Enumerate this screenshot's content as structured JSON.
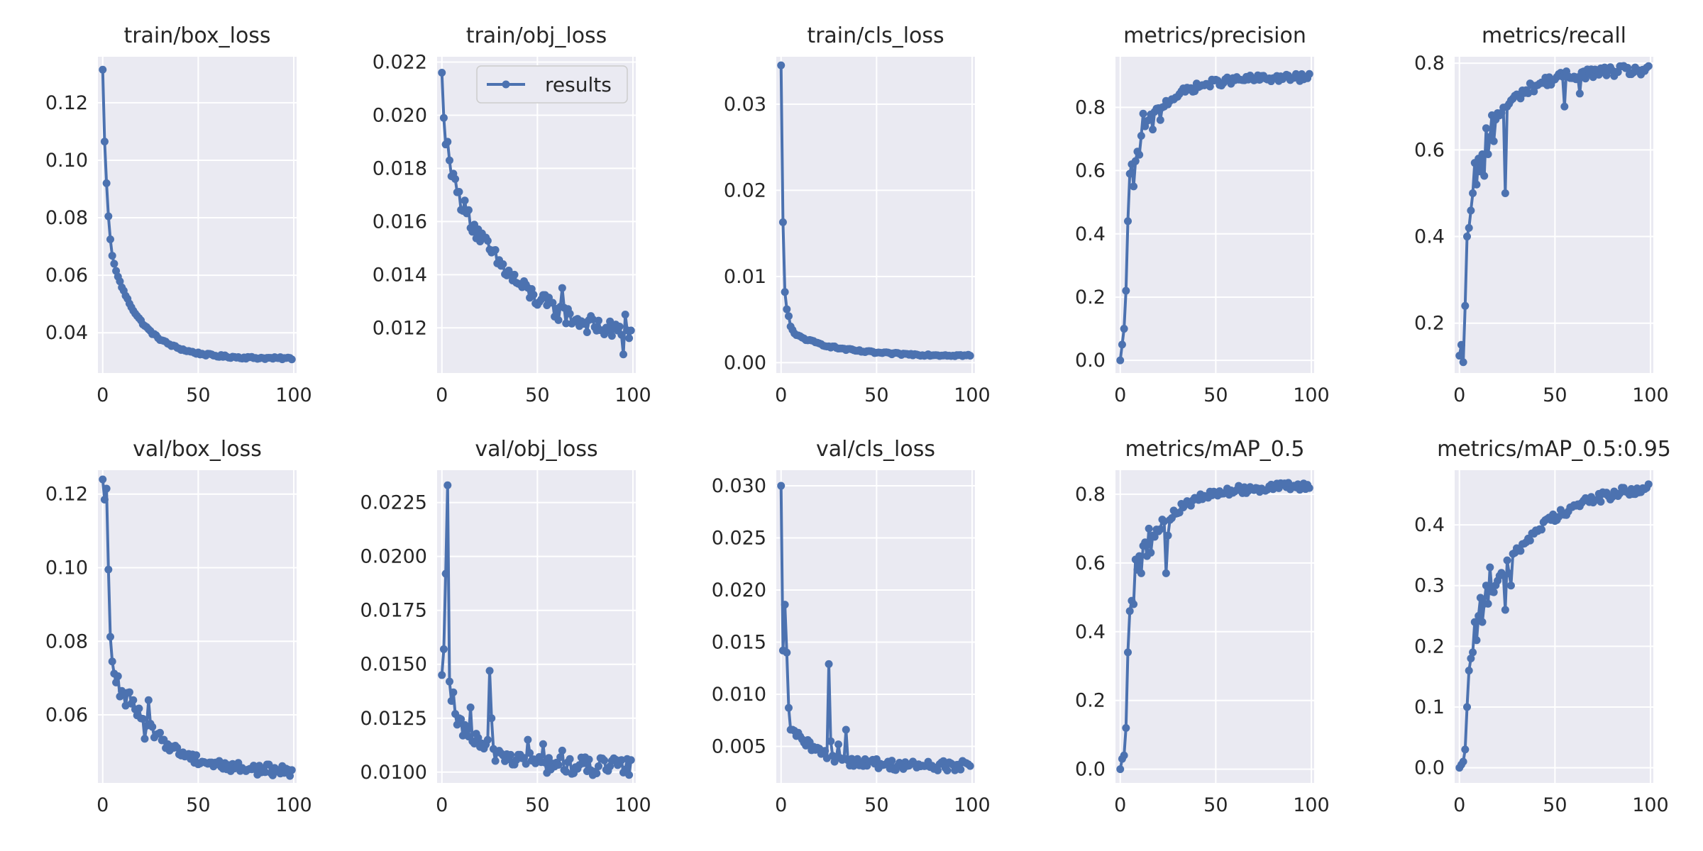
{
  "figure": {
    "colors": {
      "line": "#4c72b0",
      "plot_bg": "#eaeaf2",
      "grid": "#ffffff",
      "text": "#262626",
      "legend_border": "#cccccc"
    },
    "legend": {
      "label": "results",
      "placement": "top-right"
    }
  },
  "chart_data": [
    {
      "type": "line",
      "title": "train/box_loss",
      "xlabel": "",
      "ylabel": "",
      "xlim": [
        -2.5,
        101.5
      ],
      "ylim": [
        0.026,
        0.136
      ],
      "xticks": [
        0,
        50,
        100
      ],
      "yticks": [
        0.04,
        0.06,
        0.08,
        0.1,
        0.12
      ],
      "ytick_labels": [
        "0.04",
        "0.06",
        "0.08",
        "0.10",
        "0.12"
      ],
      "grid": true,
      "legend": false,
      "series": [
        {
          "shape": "decay",
          "start": 0.1315,
          "floor": 0.031,
          "params": [
            0.1315,
            0.1065,
            0.092,
            0.0805,
            0.0725,
            0.0668,
            0.064,
            0.0615,
            0.0595
          ],
          "rate": 0.065,
          "noise": 0.0004
        }
      ]
    },
    {
      "type": "line",
      "title": "train/obj_loss",
      "xlabel": "",
      "ylabel": "",
      "xlim": [
        -2.5,
        101.5
      ],
      "ylim": [
        0.0103,
        0.0222
      ],
      "xticks": [
        0,
        50,
        100
      ],
      "yticks": [
        0.012,
        0.014,
        0.016,
        0.018,
        0.02,
        0.022
      ],
      "ytick_labels": [
        "0.012",
        "0.014",
        "0.016",
        "0.018",
        "0.020",
        "0.022"
      ],
      "grid": true,
      "legend": true,
      "series": [
        {
          "name": "results",
          "shape": "decay",
          "start": 0.0216,
          "floor": 0.0113,
          "params": [
            0.0216,
            0.0199,
            0.0189,
            0.019,
            0.0183,
            0.0177,
            0.0178,
            0.0176,
            0.0171
          ],
          "rate": 0.028,
          "noise": 0.00035,
          "spikes": [
            [
              63,
              0.0135
            ],
            [
              96,
              0.0125
            ],
            [
              95,
              0.011
            ]
          ]
        }
      ]
    },
    {
      "type": "line",
      "title": "train/cls_loss",
      "xlabel": "",
      "ylabel": "",
      "xlim": [
        -2.5,
        101.5
      ],
      "ylim": [
        -0.0012,
        0.0355
      ],
      "xticks": [
        0,
        50,
        100
      ],
      "yticks": [
        0,
        0.01,
        0.02,
        0.03
      ],
      "ytick_labels": [
        "0.00",
        "0.01",
        "0.02",
        "0.03"
      ],
      "grid": true,
      "legend": false,
      "series": [
        {
          "shape": "decay",
          "start": 0.0345,
          "floor": 0.0008,
          "params": [
            0.0345,
            0.0163,
            0.0082,
            0.0062,
            0.0054,
            0.0042,
            0.0038,
            0.0034,
            0.0032
          ],
          "rate": 0.045,
          "noise": 0.00012
        }
      ]
    },
    {
      "type": "line",
      "title": "metrics/precision",
      "xlabel": "",
      "ylabel": "",
      "xlim": [
        -2.5,
        101.5
      ],
      "ylim": [
        -0.04,
        0.96
      ],
      "xticks": [
        0,
        50,
        100
      ],
      "yticks": [
        0,
        0.2,
        0.4,
        0.6,
        0.8
      ],
      "ytick_labels": [
        "0.0",
        "0.2",
        "0.4",
        "0.6",
        "0.8"
      ],
      "grid": true,
      "legend": false,
      "series": [
        {
          "shape": "rise",
          "start": 0.0,
          "ceiling": 0.895,
          "params": [
            0.0,
            0.05,
            0.1,
            0.22,
            0.44,
            0.59,
            0.62,
            0.55,
            0.63,
            0.66,
            0.65,
            0.71,
            0.78,
            0.74
          ],
          "rate": 0.06,
          "noise": 0.012,
          "spikes": [
            [
              17,
              0.73
            ],
            [
              21,
              0.76
            ]
          ]
        }
      ]
    },
    {
      "type": "line",
      "title": "metrics/recall",
      "xlabel": "",
      "ylabel": "",
      "xlim": [
        -2.5,
        101.5
      ],
      "ylim": [
        0.085,
        0.815
      ],
      "xticks": [
        0,
        50,
        100
      ],
      "yticks": [
        0.2,
        0.4,
        0.6,
        0.8
      ],
      "ytick_labels": [
        "0.2",
        "0.4",
        "0.6",
        "0.8"
      ],
      "grid": true,
      "legend": false,
      "series": [
        {
          "shape": "rise",
          "start": 0.125,
          "ceiling": 0.785,
          "params": [
            0.125,
            0.15,
            0.11,
            0.24,
            0.4,
            0.42,
            0.46,
            0.5,
            0.57,
            0.52,
            0.58,
            0.55,
            0.59,
            0.54,
            0.65,
            0.59,
            0.63,
            0.68,
            0.62,
            0.67
          ],
          "rate": 0.055,
          "noise": 0.012,
          "spikes": [
            [
              24,
              0.5
            ],
            [
              55,
              0.7
            ],
            [
              63,
              0.73
            ]
          ]
        }
      ]
    },
    {
      "type": "line",
      "title": "val/box_loss",
      "xlabel": "",
      "ylabel": "",
      "xlim": [
        -2.5,
        101.5
      ],
      "ylim": [
        0.0415,
        0.1265
      ],
      "xticks": [
        0,
        50,
        100
      ],
      "yticks": [
        0.06,
        0.08,
        0.1,
        0.12
      ],
      "ytick_labels": [
        "0.06",
        "0.08",
        "0.10",
        "0.12"
      ],
      "grid": true,
      "legend": false,
      "series": [
        {
          "shape": "decay",
          "start": 0.124,
          "floor": 0.0445,
          "params": [
            0.124,
            0.1185,
            0.1215,
            0.0995,
            0.0812,
            0.0745,
            0.0712,
            0.0688,
            0.0705,
            0.065,
            0.0665,
            0.0655,
            0.0625,
            0.066
          ],
          "rate": 0.05,
          "noise": 0.0015,
          "spikes": [
            [
              24,
              0.064
            ],
            [
              22,
              0.0535
            ]
          ]
        }
      ]
    },
    {
      "type": "line",
      "title": "val/obj_loss",
      "xlabel": "",
      "ylabel": "",
      "xlim": [
        -2.5,
        101.5
      ],
      "ylim": [
        0.0095,
        0.024
      ],
      "xticks": [
        0,
        50,
        100
      ],
      "yticks": [
        0.01,
        0.0125,
        0.015,
        0.0175,
        0.02,
        0.0225
      ],
      "ytick_labels": [
        "0.0100",
        "0.0125",
        "0.0150",
        "0.0175",
        "0.0200",
        "0.0225"
      ],
      "grid": true,
      "legend": false,
      "series": [
        {
          "shape": "decay",
          "start": 0.0145,
          "floor": 0.0102,
          "params": [
            0.0145,
            0.0157,
            0.0192,
            0.0233,
            0.0142,
            0.0133,
            0.0137,
            0.0127,
            0.0122
          ],
          "rate": 0.05,
          "noise": 0.00045,
          "spikes": [
            [
              15,
              0.013
            ],
            [
              25,
              0.0147
            ],
            [
              26,
              0.0125
            ],
            [
              45,
              0.0115
            ],
            [
              53,
              0.0113
            ],
            [
              63,
              0.011
            ]
          ]
        }
      ]
    },
    {
      "type": "line",
      "title": "val/cls_loss",
      "xlabel": "",
      "ylabel": "",
      "xlim": [
        -2.5,
        101.5
      ],
      "ylim": [
        0.0015,
        0.0315
      ],
      "xticks": [
        0,
        50,
        100
      ],
      "yticks": [
        0.005,
        0.01,
        0.015,
        0.02,
        0.025,
        0.03
      ],
      "ytick_labels": [
        "0.005",
        "0.010",
        "0.015",
        "0.020",
        "0.025",
        "0.030"
      ],
      "grid": true,
      "legend": false,
      "series": [
        {
          "shape": "decay",
          "start": 0.03,
          "floor": 0.0031,
          "params": [
            0.03,
            0.0142,
            0.0186,
            0.014,
            0.0087,
            0.0066,
            0.0066,
            0.0065,
            0.006
          ],
          "rate": 0.06,
          "noise": 0.0005,
          "spikes": [
            [
              25,
              0.0129
            ],
            [
              26,
              0.0055
            ],
            [
              34,
              0.0066
            ],
            [
              30,
              0.0052
            ]
          ]
        }
      ]
    },
    {
      "type": "line",
      "title": "metrics/mAP_0.5",
      "xlabel": "",
      "ylabel": "",
      "xlim": [
        -2.5,
        101.5
      ],
      "ylim": [
        -0.04,
        0.87
      ],
      "xticks": [
        0,
        50,
        100
      ],
      "yticks": [
        0,
        0.2,
        0.4,
        0.6,
        0.8
      ],
      "ytick_labels": [
        "0.0",
        "0.2",
        "0.4",
        "0.6",
        "0.8"
      ],
      "grid": true,
      "legend": false,
      "series": [
        {
          "shape": "rise",
          "start": 0.0,
          "ceiling": 0.825,
          "params": [
            0.0,
            0.03,
            0.04,
            0.12,
            0.34,
            0.46,
            0.49,
            0.48,
            0.61,
            0.58,
            0.62,
            0.57,
            0.65,
            0.66,
            0.62,
            0.7,
            0.63,
            0.68
          ],
          "rate": 0.055,
          "noise": 0.012,
          "spikes": [
            [
              24,
              0.57
            ],
            [
              25,
              0.68
            ]
          ]
        }
      ]
    },
    {
      "type": "line",
      "title": "metrics/mAP_0.5:0.95",
      "xlabel": "",
      "ylabel": "",
      "xlim": [
        -2.5,
        101.5
      ],
      "ylim": [
        -0.025,
        0.49
      ],
      "xticks": [
        0,
        50,
        100
      ],
      "yticks": [
        0,
        0.1,
        0.2,
        0.3,
        0.4
      ],
      "ytick_labels": [
        "0.0",
        "0.1",
        "0.2",
        "0.3",
        "0.4"
      ],
      "grid": true,
      "legend": false,
      "series": [
        {
          "shape": "rise",
          "start": 0.0,
          "ceiling": 0.47,
          "params": [
            0.0,
            0.005,
            0.01,
            0.03,
            0.1,
            0.16,
            0.18,
            0.19,
            0.24,
            0.21,
            0.25,
            0.28,
            0.24,
            0.27,
            0.3,
            0.27,
            0.33,
            0.29
          ],
          "rate": 0.035,
          "noise": 0.008,
          "spikes": [
            [
              24,
              0.26
            ],
            [
              26,
              0.32
            ],
            [
              27,
              0.3
            ]
          ]
        }
      ]
    }
  ]
}
